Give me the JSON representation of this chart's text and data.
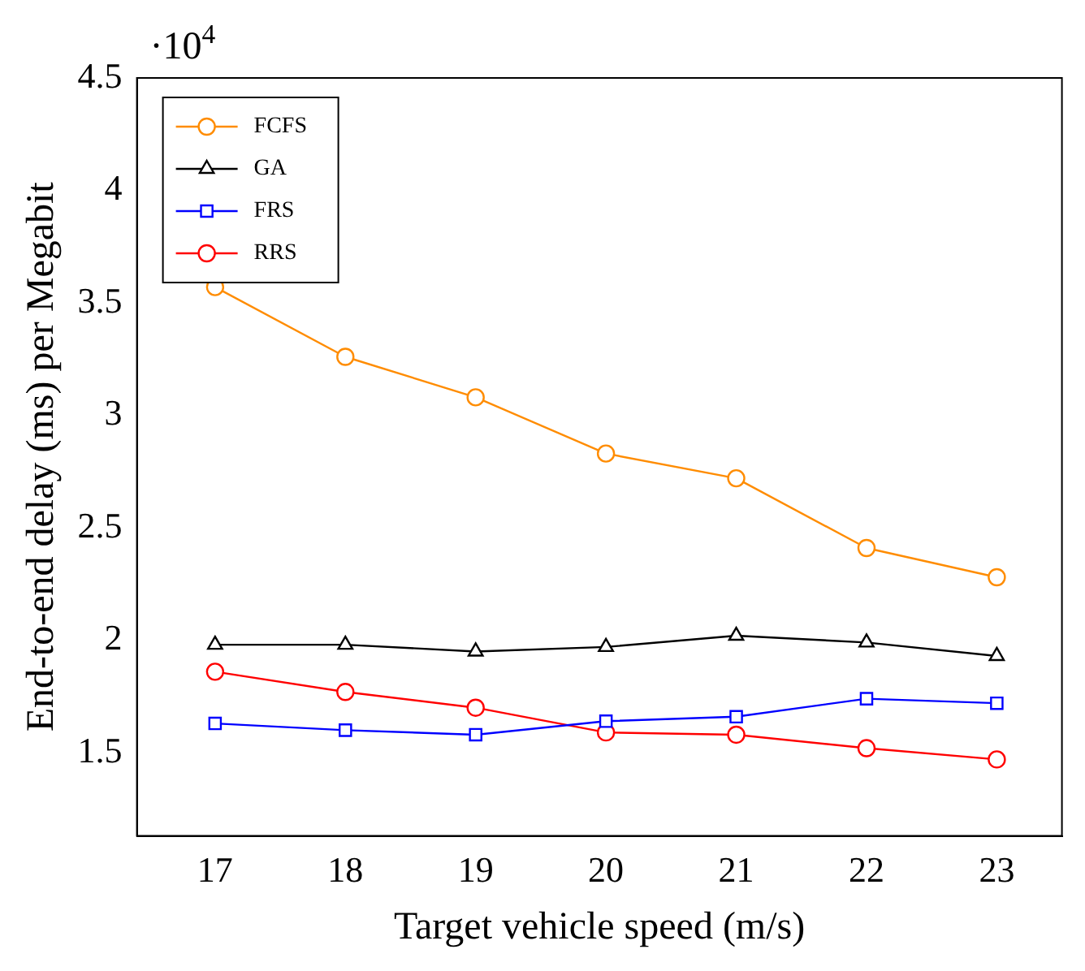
{
  "chart_data": {
    "type": "line",
    "xlabel": "Target vehicle speed (m/s)",
    "ylabel": "End-to-end delay (ms) per Megabit",
    "x": [
      17,
      18,
      19,
      20,
      21,
      22,
      23
    ],
    "series": [
      {
        "name": "FCFS",
        "color": "#ff8c00",
        "marker": "circle",
        "values": [
          3.57,
          3.26,
          3.08,
          2.83,
          2.72,
          2.41,
          2.28
        ]
      },
      {
        "name": "GA",
        "color": "#000000",
        "marker": "triangle",
        "values": [
          1.98,
          1.98,
          1.95,
          1.97,
          2.02,
          1.99,
          1.93
        ]
      },
      {
        "name": "FRS",
        "color": "#0000ff",
        "marker": "square",
        "values": [
          1.63,
          1.6,
          1.58,
          1.64,
          1.66,
          1.74,
          1.72
        ]
      },
      {
        "name": "RRS",
        "color": "#ff0000",
        "marker": "circle",
        "values": [
          1.86,
          1.77,
          1.7,
          1.59,
          1.58,
          1.52,
          1.47
        ]
      }
    ],
    "xlim": [
      16.4,
      23.5
    ],
    "ylim": [
      1.13,
      4.5
    ],
    "xticks": [
      17,
      18,
      19,
      20,
      21,
      22,
      23
    ],
    "yticks": [
      1.5,
      2,
      2.5,
      3,
      3.5,
      4,
      4.5
    ],
    "annotations": [
      "·10$^{4}$"
    ],
    "legend": "top left",
    "grid": false,
    "line_style": "solid"
  }
}
